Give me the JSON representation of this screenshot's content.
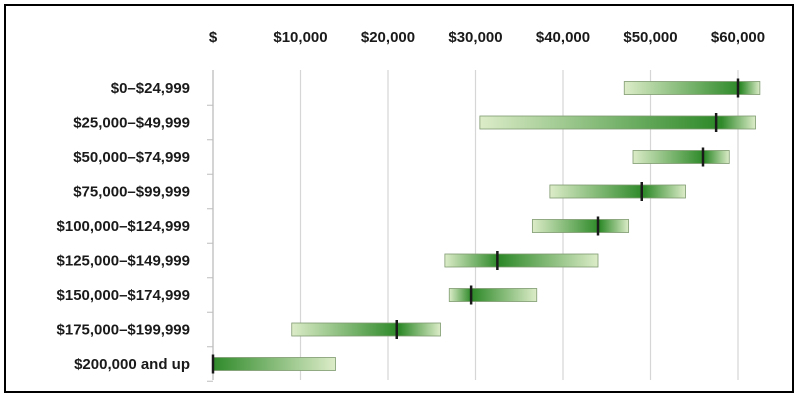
{
  "chart_data": {
    "type": "bar",
    "orientation": "horizontal",
    "style": "range-with-marker",
    "title": "",
    "xlabel": "",
    "ylabel": "",
    "xlim": [
      0,
      60000
    ],
    "x_ticks": [
      0,
      10000,
      20000,
      30000,
      40000,
      50000,
      60000
    ],
    "x_tick_labels": [
      "$",
      "$10,000",
      "$20,000",
      "$30,000",
      "$40,000",
      "$50,000",
      "$60,000"
    ],
    "x_axis_position": "top",
    "grid": "vertical",
    "categories": [
      "$0–$24,999",
      "$25,000–$49,999",
      "$50,000–$74,999",
      "$75,000–$99,999",
      "$100,000–$124,999",
      "$125,000–$149,999",
      "$150,000–$174,999",
      "$175,000–$199,999",
      "$200,000 and up"
    ],
    "ranges": [
      {
        "low": 47000,
        "high": 62500,
        "marker": 60000
      },
      {
        "low": 30500,
        "high": 62000,
        "marker": 57500
      },
      {
        "low": 48000,
        "high": 59000,
        "marker": 56000
      },
      {
        "low": 38500,
        "high": 54000,
        "marker": 49000
      },
      {
        "low": 36500,
        "high": 47500,
        "marker": 44000
      },
      {
        "low": 26500,
        "high": 44000,
        "marker": 32500
      },
      {
        "low": 27000,
        "high": 37000,
        "marker": 29500
      },
      {
        "low": 9000,
        "high": 26000,
        "marker": 21000
      },
      {
        "low": 0,
        "high": 14000,
        "marker": 0
      }
    ],
    "colors": {
      "bar_light": "#dcecc8",
      "bar_dark": "#2f8a2a",
      "marker": "#1a1a1a",
      "grid": "#d6d6d6"
    }
  }
}
